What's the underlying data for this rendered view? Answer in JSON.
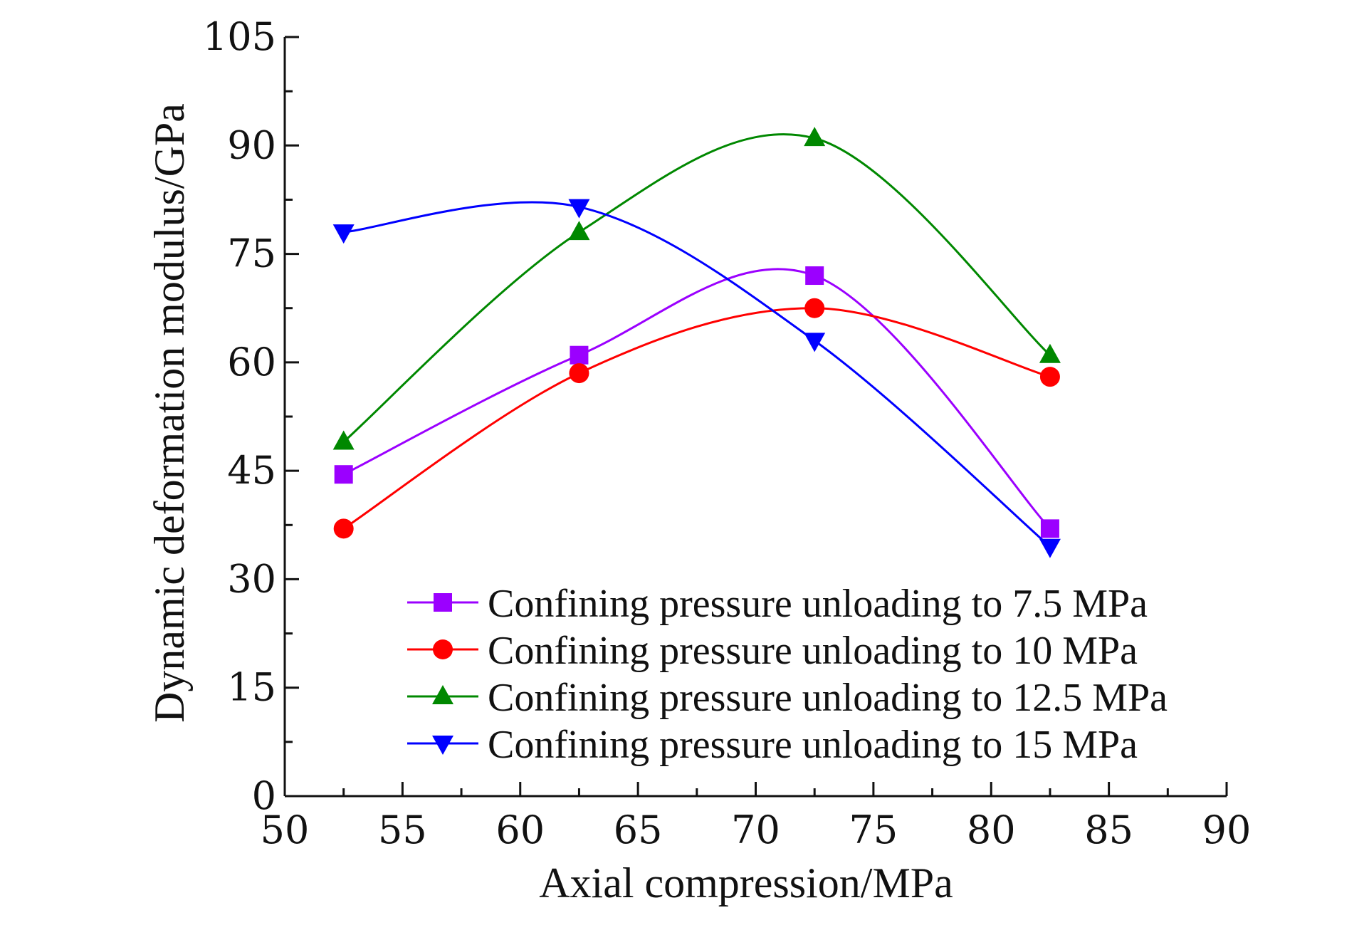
{
  "chart_data": {
    "type": "line",
    "title": "",
    "xlabel": "Axial compression/MPa",
    "ylabel": "Dynamic deformation modulus/GPa",
    "xlim": [
      50,
      90
    ],
    "ylim": [
      0,
      105
    ],
    "xticks": [
      "50",
      "55",
      "60",
      "65",
      "70",
      "75",
      "80",
      "85",
      "90"
    ],
    "yticks": [
      "0",
      "15",
      "30",
      "45",
      "60",
      "75",
      "90",
      "105"
    ],
    "grid": false,
    "legend_position": "bottom-right",
    "x": [
      52.5,
      62.5,
      72.5,
      82.5
    ],
    "series": [
      {
        "name": "Confining pressure unloading to 7.5 MPa",
        "color": "#9b00ff",
        "marker": "square",
        "values": [
          44.5,
          61,
          72,
          37
        ]
      },
      {
        "name": "Confining pressure unloading to 10 MPa",
        "color": "#ff0000",
        "marker": "circle",
        "values": [
          37,
          58.5,
          67.5,
          58
        ]
      },
      {
        "name": "Confining pressure unloading to 12.5 MPa",
        "color": "#008800",
        "marker": "triangle-up",
        "values": [
          49,
          78,
          91,
          61
        ]
      },
      {
        "name": "Confining pressure unloading to 15 MPa",
        "color": "#0000ff",
        "marker": "triangle-down",
        "values": [
          78,
          81.5,
          63,
          34.5
        ]
      }
    ]
  }
}
